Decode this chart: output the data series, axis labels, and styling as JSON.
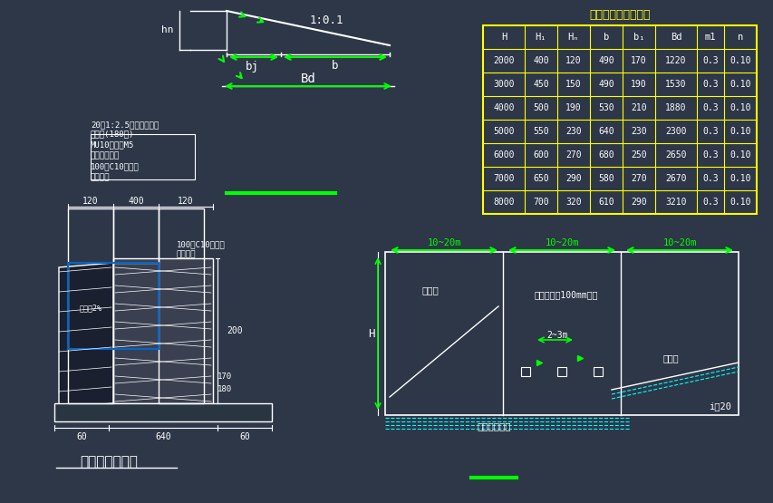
{
  "bg_color": "#2d3748",
  "bg_color2": "#2a3042",
  "line_color": "#ffffff",
  "green_color": "#00ff00",
  "yellow_color": "#ffff00",
  "cyan_color": "#00ffff",
  "title": "重力式挡土墙尺寸表",
  "table_headers": [
    "H",
    "H₁",
    "Hₙ",
    "b",
    "b₁",
    "Bd",
    "m1",
    "n"
  ],
  "table_data": [
    [
      "2000",
      "400",
      "120",
      "490",
      "170",
      "1220",
      "0.3",
      "0.10"
    ],
    [
      "3000",
      "450",
      "150",
      "490",
      "190",
      "1530",
      "0.3",
      "0.10"
    ],
    [
      "4000",
      "500",
      "190",
      "530",
      "210",
      "1880",
      "0.3",
      "0.10"
    ],
    [
      "5000",
      "550",
      "230",
      "640",
      "230",
      "2300",
      "0.3",
      "0.10"
    ],
    [
      "6000",
      "600",
      "270",
      "680",
      "250",
      "2650",
      "0.3",
      "0.10"
    ],
    [
      "7000",
      "650",
      "290",
      "580",
      "270",
      "2670",
      "0.3",
      "0.10"
    ],
    [
      "8000",
      "700",
      "320",
      "610",
      "290",
      "3210",
      "0.3",
      "0.10"
    ]
  ],
  "bottom_title": "坡顶截水沟大样",
  "note_lines": [
    "20厚1:2.5水泥砂浆抹面",
    "毛料石(180厚)",
    "MU10页岩砖M5",
    "水泥砂浆砌筑",
    "100厚C10混凝土",
    "垫土夯实"
  ],
  "dims_top": [
    "120",
    "400",
    "120"
  ],
  "dim_bottom": [
    "60",
    "640",
    "60"
  ]
}
